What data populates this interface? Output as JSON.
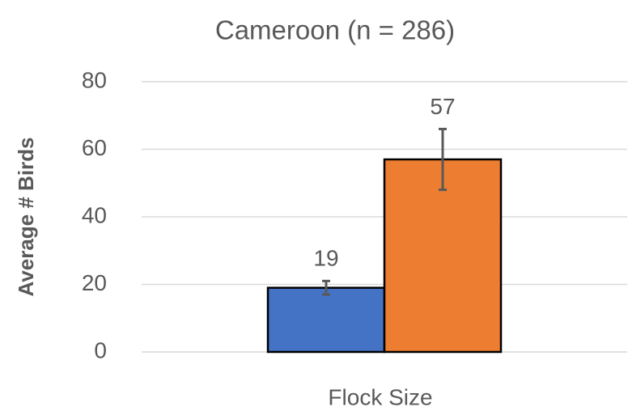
{
  "chart_data": {
    "type": "bar",
    "title": "Cameroon (n = 286)",
    "x_label": "Flock Size",
    "y_label": "Average # Birds",
    "categories": [
      null
    ],
    "series": [
      {
        "color": "#4472c4",
        "values": [
          19
        ],
        "errors": [
          2
        ]
      },
      {
        "color": "#ed7d31",
        "values": [
          57
        ],
        "errors": [
          9
        ]
      }
    ],
    "ylim": [
      0,
      80
    ],
    "yticks": [
      0,
      20,
      40,
      60,
      80
    ],
    "grid": true
  }
}
